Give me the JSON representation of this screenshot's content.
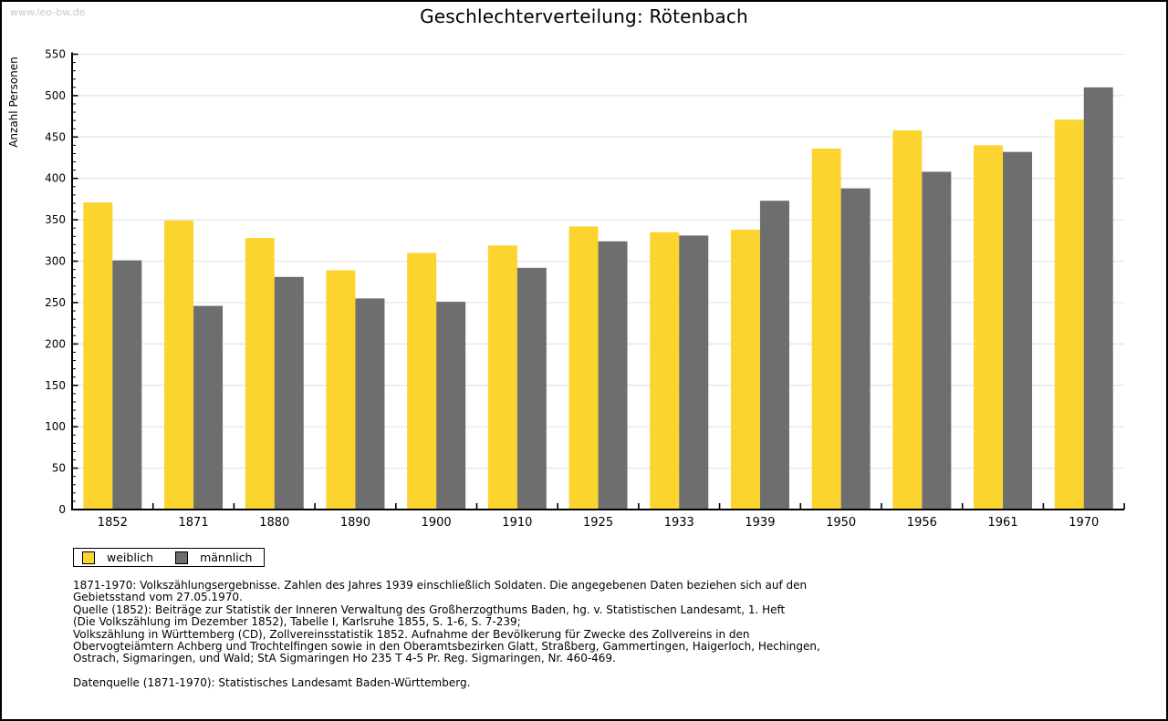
{
  "watermark": "www.leo-bw.de",
  "title": "Geschlechterverteilung: Rötenbach",
  "chart_data": {
    "type": "bar",
    "title": "Geschlechterverteilung: Rötenbach",
    "xlabel": "",
    "ylabel": "Anzahl Personen",
    "ylim": [
      0,
      550
    ],
    "ytick_step": 50,
    "y_minor_tick_step": 10,
    "grid": true,
    "grid_color": "#e3e3e3",
    "axis_color": "#000000",
    "legend_position": "bottom-left",
    "categories": [
      "1852",
      "1871",
      "1880",
      "1890",
      "1900",
      "1910",
      "1925",
      "1933",
      "1939",
      "1950",
      "1956",
      "1961",
      "1970"
    ],
    "series": [
      {
        "name": "weiblich",
        "color": "#fcd42f",
        "values": [
          371,
          349,
          328,
          289,
          310,
          319,
          342,
          335,
          338,
          436,
          458,
          440,
          471
        ]
      },
      {
        "name": "männlich",
        "color": "#6e6e6e",
        "values": [
          301,
          246,
          281,
          255,
          251,
          292,
          324,
          331,
          373,
          388,
          408,
          432,
          510
        ]
      }
    ]
  },
  "footnote_lines": [
    "1871-1970: Volkszählungsergebnisse. Zahlen des Jahres 1939 einschließlich Soldaten. Die angegebenen Daten beziehen sich auf den",
    "Gebietsstand vom 27.05.1970.",
    "Quelle (1852): Beiträge zur Statistik der Inneren Verwaltung des Großherzogthums Baden, hg. v. Statistischen Landesamt, 1. Heft",
    "(Die Volkszählung im Dezember 1852), Tabelle I, Karlsruhe 1855, S. 1-6, S. 7-239;",
    "Volkszählung in Württemberg (CD), Zollvereinsstatistik 1852. Aufnahme der Bevölkerung für Zwecke des Zollvereins in den",
    "Obervogteiämtern Achberg und Trochtelfingen sowie in den Oberamtsbezirken Glatt, Straßberg, Gammertingen, Haigerloch, Hechingen,",
    "Ostrach, Sigmaringen, und Wald; StA Sigmaringen Ho 235 T 4-5 Pr. Reg. Sigmaringen, Nr. 460-469."
  ],
  "datasource_note": "Datenquelle (1871-1970): Statistisches Landesamt Baden-Württemberg."
}
